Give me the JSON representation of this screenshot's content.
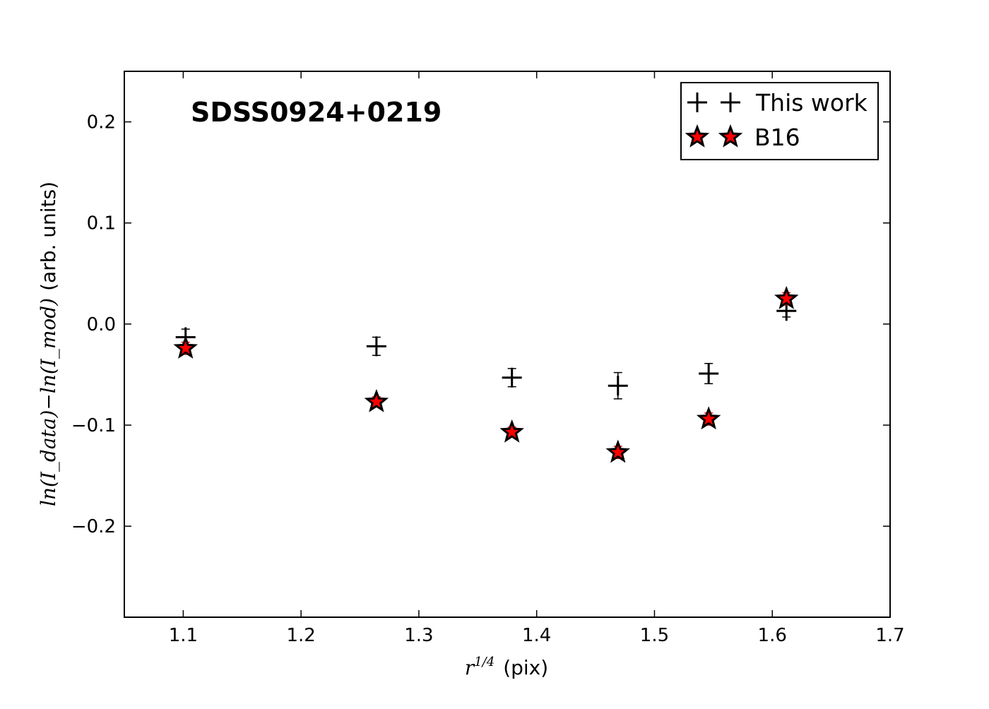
{
  "chart_data": {
    "type": "scatter",
    "title": "SDSS0924+0219",
    "xlabel": {
      "math_base": "r",
      "math_sup": "1/4",
      "text": "(pix)"
    },
    "ylabel": {
      "math": "ln(I_data)−ln(I_mod)",
      "text": "(arb. units)"
    },
    "xlim": [
      1.05,
      1.7
    ],
    "ylim": [
      -0.29,
      0.25
    ],
    "xticks": [
      1.1,
      1.2,
      1.3,
      1.4,
      1.5,
      1.6,
      1.7
    ],
    "xtick_labels": [
      "1.1",
      "1.2",
      "1.3",
      "1.4",
      "1.5",
      "1.6",
      "1.7"
    ],
    "yticks": [
      0.2,
      0.1,
      0.0,
      -0.1,
      -0.2
    ],
    "ytick_labels": [
      "0.2",
      "0.1",
      "0.0",
      "−0.1",
      "−0.2"
    ],
    "grid": false,
    "legend_position": "top-right",
    "series": [
      {
        "name": "This work",
        "marker": "plus",
        "color": "#000000",
        "points": [
          {
            "x": 1.102,
            "y": -0.013,
            "err": 0.008
          },
          {
            "x": 1.264,
            "y": -0.022,
            "err": 0.009
          },
          {
            "x": 1.379,
            "y": -0.053,
            "err": 0.009
          },
          {
            "x": 1.469,
            "y": -0.061,
            "err": 0.013
          },
          {
            "x": 1.546,
            "y": -0.049,
            "err": 0.01
          },
          {
            "x": 1.612,
            "y": 0.013,
            "err": 0.006
          }
        ]
      },
      {
        "name": "B16",
        "marker": "star",
        "color": "#ff0000",
        "edge_color": "#000000",
        "points": [
          {
            "x": 1.102,
            "y": -0.024,
            "err": 0.006
          },
          {
            "x": 1.264,
            "y": -0.077,
            "err": 0.005
          },
          {
            "x": 1.379,
            "y": -0.107,
            "err": 0.005
          },
          {
            "x": 1.469,
            "y": -0.127,
            "err": 0.006
          },
          {
            "x": 1.546,
            "y": -0.094,
            "err": 0.006
          },
          {
            "x": 1.612,
            "y": 0.025,
            "err": 0.006
          }
        ]
      }
    ]
  }
}
